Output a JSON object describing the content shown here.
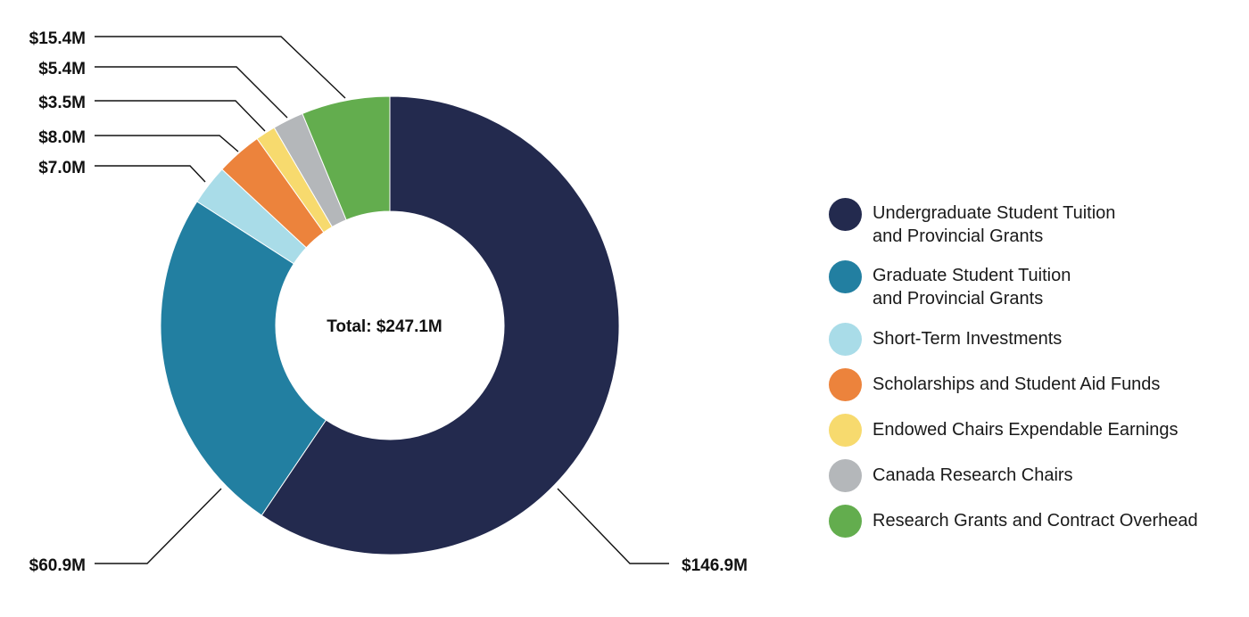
{
  "chart_data": {
    "type": "pie",
    "variant": "donut",
    "center_label": "Total: $247.1M",
    "total": 247.1,
    "unit": "$M",
    "legend_placement": "right",
    "slices": [
      {
        "name": "Undergraduate Student Tuition\nand Provincial Grants",
        "value": 146.9,
        "label": "$146.9M",
        "color": "#232a4e"
      },
      {
        "name": "Graduate Student Tuition\nand Provincial Grants",
        "value": 60.9,
        "label": "$60.9M",
        "color": "#227fa1"
      },
      {
        "name": "Short-Term Investments",
        "value": 7.0,
        "label": "$7.0M",
        "color": "#a9dce8"
      },
      {
        "name": "Scholarships and Student Aid Funds",
        "value": 8.0,
        "label": "$8.0M",
        "color": "#ec833c"
      },
      {
        "name": "Endowed Chairs Expendable Earnings",
        "value": 3.5,
        "label": "$3.5M",
        "color": "#f7da6e"
      },
      {
        "name": "Canada Research Chairs",
        "value": 5.4,
        "label": "$5.4M",
        "color": "#b4b7ba"
      },
      {
        "name": "Research Grants and Contract Overhead",
        "value": 15.4,
        "label": "$15.4M",
        "color": "#63ad4e"
      }
    ]
  }
}
